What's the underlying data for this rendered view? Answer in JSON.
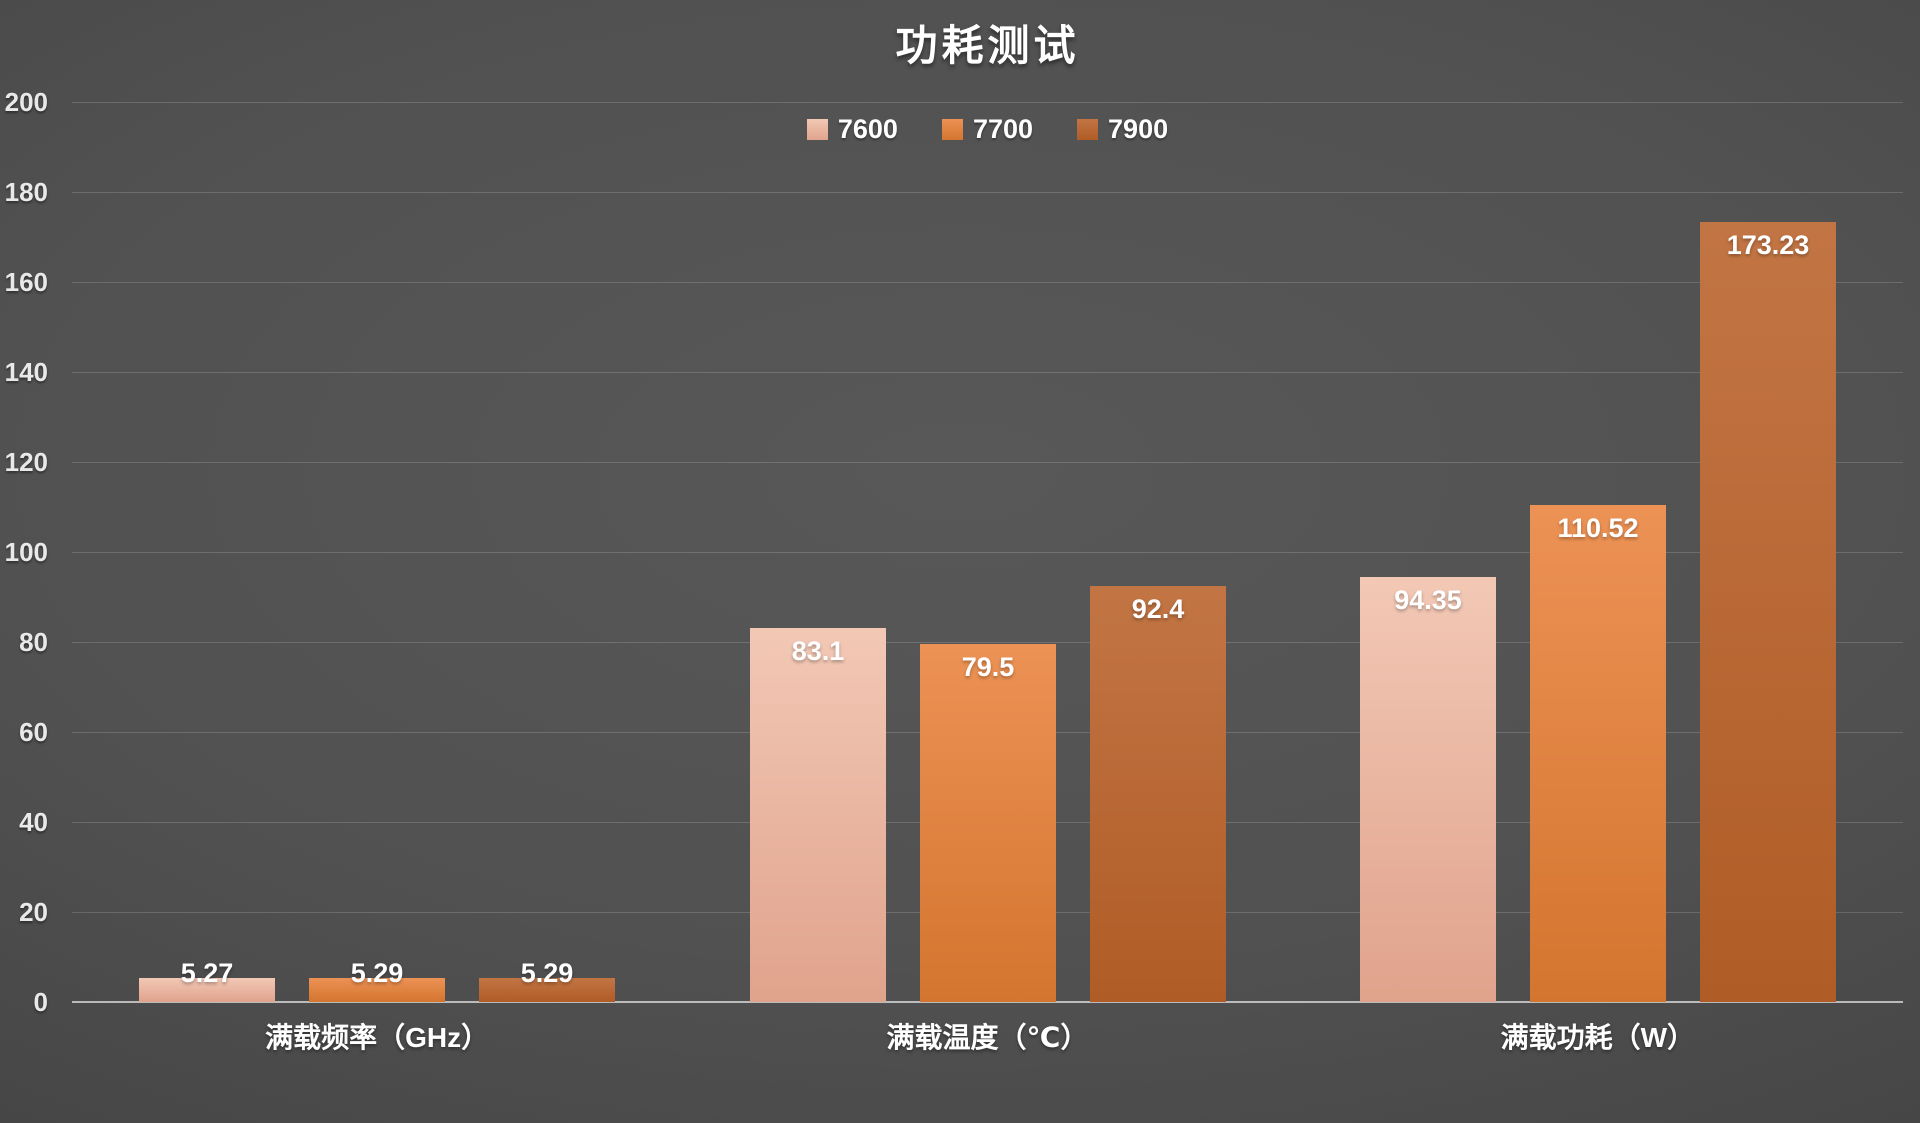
{
  "chart_data": {
    "type": "bar",
    "title": "功耗测试",
    "categories": [
      "满载频率（GHz）",
      "满载温度（℃）",
      "满载功耗（W）"
    ],
    "series": [
      {
        "name": "7600",
        "legend_color": "#ECBCA9",
        "color_top": "#F2C8B5",
        "color_bottom": "#E0A38C",
        "values": [
          5.27,
          83.1,
          94.35
        ],
        "labels": [
          "5.27",
          "83.1",
          "94.35"
        ]
      },
      {
        "name": "7700",
        "legend_color": "#E07F3D",
        "color_top": "#EC9255",
        "color_bottom": "#D4752F",
        "values": [
          5.29,
          79.5,
          110.52
        ],
        "labels": [
          "5.29",
          "79.5",
          "110.52"
        ]
      },
      {
        "name": "7900",
        "legend_color": "#BA6530",
        "color_top": "#C27544",
        "color_bottom": "#B05C26",
        "values": [
          5.29,
          92.4,
          173.23
        ],
        "labels": [
          "5.29",
          "92.4",
          "173.23"
        ]
      }
    ],
    "ylim": [
      0,
      200
    ],
    "ytick_step": 20,
    "ytick_labels": [
      "0",
      "20",
      "40",
      "60",
      "80",
      "100",
      "120",
      "140",
      "160",
      "180",
      "200"
    ],
    "grid": true,
    "legend_position": "top",
    "xlabel": "",
    "ylabel": "",
    "style": {
      "background_center": "#585858",
      "background_edge": "#2d2d2d",
      "text_color": "#FFFFFF",
      "tick_color": "#E9E9E9"
    }
  }
}
